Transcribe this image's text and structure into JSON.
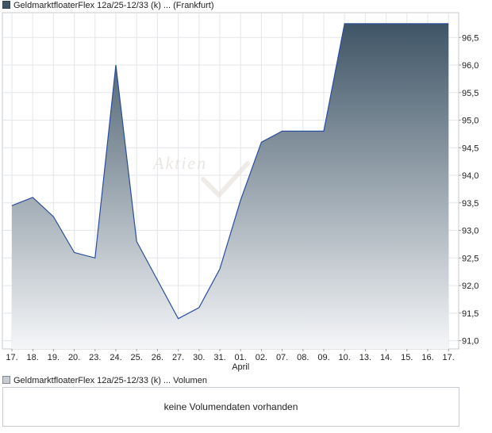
{
  "price_legend": {
    "label": "GeldmarktfloaterFlex 12a/25-12/33 (k) ... (Frankfurt)",
    "color": "#3f5566"
  },
  "volume_legend": {
    "label": "GeldmarktfloaterFlex 12a/25-12/33 (k) ... Volumen",
    "color": "#c9cdd1"
  },
  "volume_message": "keine Volumendaten vorhanden",
  "watermark": "Aktien",
  "chart_data": {
    "type": "area",
    "title": "",
    "xlabel": "",
    "ylabel": "",
    "x": [
      "17.",
      "18.",
      "19.",
      "20.",
      "23.",
      "24.",
      "25.",
      "26.",
      "27.",
      "30.",
      "31.",
      "01.",
      "02.",
      "07.",
      "08.",
      "09.",
      "10.",
      "13.",
      "14.",
      "15.",
      "16.",
      "17."
    ],
    "x_secondary_labels": [
      {
        "index": 11,
        "label": "April"
      }
    ],
    "series": [
      {
        "values": [
          93.45,
          93.6,
          93.25,
          92.6,
          92.5,
          96.0,
          92.8,
          92.1,
          91.4,
          91.6,
          92.3,
          93.55,
          94.6,
          94.8,
          94.8,
          94.8,
          96.75,
          96.75,
          96.75,
          96.75,
          96.75,
          96.75
        ],
        "line_color": "#2a4d9e",
        "fill_top_color": "#3f5566",
        "fill_bottom_color": "#f5f6f8"
      }
    ],
    "y_ticks": [
      "91,0",
      "91,5",
      "92,0",
      "92,5",
      "93,0",
      "93,5",
      "94,0",
      "94,5",
      "95,0",
      "95,5",
      "96,0",
      "96,5"
    ],
    "y_tick_values": [
      91.0,
      91.5,
      92.0,
      92.5,
      93.0,
      93.5,
      94.0,
      94.5,
      95.0,
      95.5,
      96.0,
      96.5
    ],
    "ylim": [
      90.85,
      96.95
    ],
    "y_axis_side": "right",
    "grid": true
  }
}
